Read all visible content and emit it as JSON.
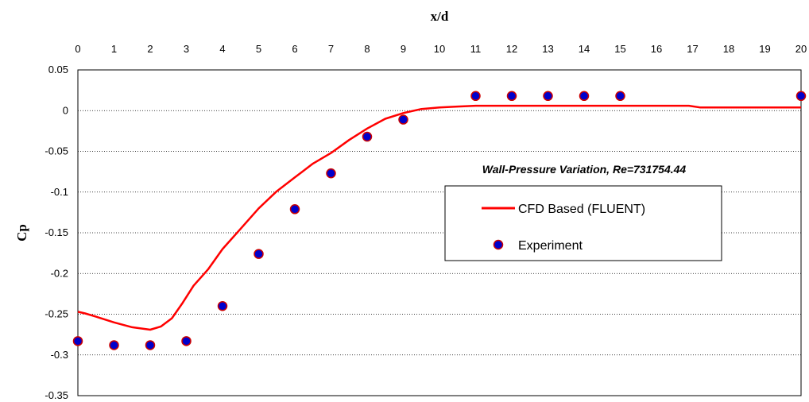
{
  "chart_data": {
    "type": "line",
    "title": "",
    "annotation": "Wall-Pressure Variation, Re=731754.44",
    "xlabel": "x/d",
    "ylabel": "Cp",
    "xlim": [
      0,
      20
    ],
    "ylim": [
      -0.35,
      0.05
    ],
    "x_ticks": [
      "0",
      "1",
      "2",
      "3",
      "4",
      "5",
      "6",
      "7",
      "8",
      "9",
      "10",
      "11",
      "12",
      "13",
      "14",
      "15",
      "16",
      "17",
      "18",
      "19",
      "20"
    ],
    "y_ticks": [
      "0.05",
      "0",
      "-0.05",
      "-0.1",
      "-0.15",
      "-0.2",
      "-0.25",
      "-0.3",
      "-0.35"
    ],
    "x_axis_position": "top",
    "grid": "horizontal dotted",
    "legend_position": "center-right",
    "series": [
      {
        "name": "CFD Based (FLUENT)",
        "kind": "line",
        "color": "#ff0000",
        "x": [
          0,
          0.2,
          0.5,
          1.0,
          1.5,
          2.0,
          2.3,
          2.6,
          2.9,
          3.2,
          3.6,
          4.0,
          4.5,
          5.0,
          5.5,
          6.0,
          6.5,
          7.0,
          7.5,
          8.0,
          8.5,
          9.0,
          9.5,
          10.0,
          10.5,
          11.0,
          12.0,
          13.0,
          14.0,
          15.0,
          16.0,
          16.9,
          17.2,
          18.0,
          19.0,
          20.0
        ],
        "y": [
          -0.247,
          -0.249,
          -0.253,
          -0.26,
          -0.266,
          -0.269,
          -0.265,
          -0.255,
          -0.236,
          -0.215,
          -0.195,
          -0.17,
          -0.145,
          -0.12,
          -0.099,
          -0.082,
          -0.065,
          -0.052,
          -0.036,
          -0.022,
          -0.01,
          -0.003,
          0.002,
          0.004,
          0.005,
          0.006,
          0.006,
          0.006,
          0.006,
          0.006,
          0.006,
          0.006,
          0.004,
          0.004,
          0.004,
          0.004
        ]
      },
      {
        "name": "Experiment",
        "kind": "scatter",
        "color": "#0000cc",
        "edge_color": "#cc0000",
        "x": [
          0,
          1,
          2,
          3,
          4,
          5,
          6,
          7,
          8,
          9,
          11,
          12,
          13,
          14,
          15,
          20
        ],
        "y": [
          -0.283,
          -0.288,
          -0.288,
          -0.283,
          -0.24,
          -0.176,
          -0.121,
          -0.077,
          -0.032,
          -0.011,
          0.018,
          0.018,
          0.018,
          0.018,
          0.018,
          0.018
        ]
      }
    ]
  }
}
